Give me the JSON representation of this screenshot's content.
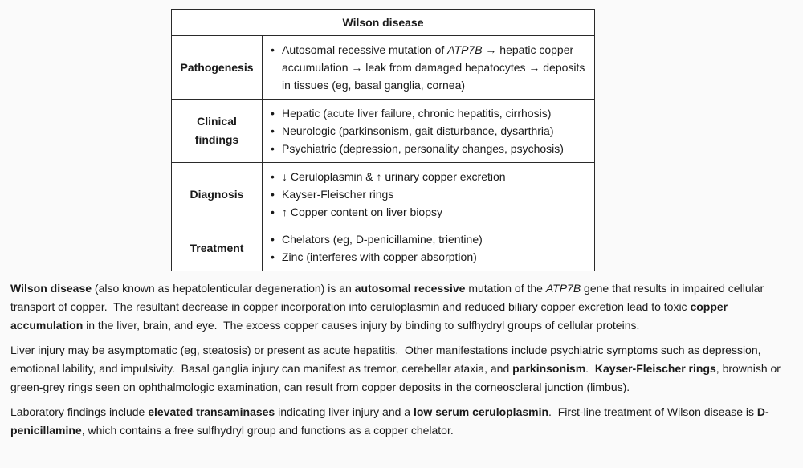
{
  "table": {
    "title": "Wilson disease",
    "rows": [
      {
        "label": [
          "Pathogenesis"
        ],
        "items": [
          [
            "Autosomal recessive mutation of ",
            "ATP7B",
            " → hepatic copper accumulation → leak from damaged hepatocytes → deposits in tissues (eg, basal ganglia, cornea)"
          ]
        ]
      },
      {
        "label": [
          "Clinical",
          "findings"
        ],
        "items": [
          "Hepatic (acute liver failure, chronic hepatitis, cirrhosis)",
          "Neurologic (parkinsonism, gait disturbance, dysarthria)",
          "Psychiatric (depression, personality changes, psychosis)"
        ]
      },
      {
        "label": [
          "Diagnosis"
        ],
        "items": [
          "↓ Ceruloplasmin & ↑ urinary copper excretion",
          "Kayser-Fleischer rings",
          "↑ Copper content on liver biopsy"
        ]
      },
      {
        "label": [
          "Treatment"
        ],
        "items": [
          "Chelators (eg, D-penicillamine, trientine)",
          "Zinc (interferes with copper absorption)"
        ]
      }
    ]
  },
  "paragraphs": [
    {
      "p1": "Wilson disease",
      "p2": " (also known as hepatolenticular degeneration) is an ",
      "p3": "autosomal recessive",
      "p4": " mutation of the ",
      "p5": "ATP7B",
      "p6": " gene that results in impaired cellular transport of copper.  The resultant decrease in copper incorporation into ceruloplasmin and reduced biliary copper excretion lead to toxic ",
      "p7": "copper accumulation",
      "p8": " in the liver, brain, and eye.  The excess copper causes injury by binding to sulfhydryl groups of cellular proteins."
    },
    {
      "p1": "Liver injury may be asymptomatic (eg, steatosis) or present as acute hepatitis.  Other manifestations include psychiatric symptoms such as depression, emotional lability, and impulsivity.  Basal ganglia injury can manifest as tremor, cerebellar ataxia, and ",
      "p2": "parkinsonism",
      "p3": ".  ",
      "p4": "Kayser-Fleischer rings",
      "p5": ", brownish or green-grey rings seen on ophthalmologic examination, can result from copper deposits in the corneoscleral junction (limbus)."
    },
    {
      "p1": "Laboratory findings include ",
      "p2": "elevated transaminases",
      "p3": " indicating liver injury and a ",
      "p4": "low serum ceruloplasmin",
      "p5": ".  First-line treatment of Wilson disease is ",
      "p6": "D-penicillamine",
      "p7": ", which contains a free sulfhydryl group and functions as a copper chelator."
    }
  ]
}
